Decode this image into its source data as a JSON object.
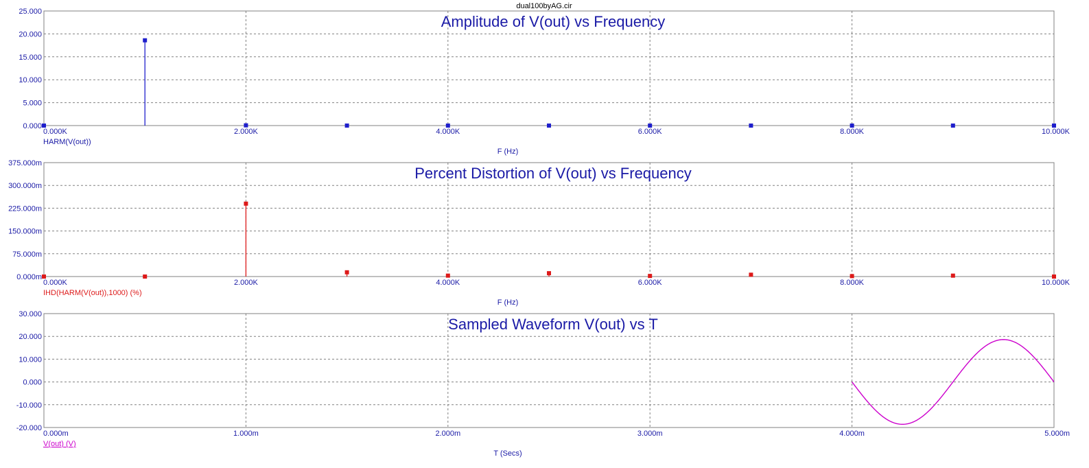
{
  "file_title": "dual100byAG.cir",
  "colors": {
    "axis_text": "#1a1aa6",
    "grid": "#808080",
    "harm": "#1f1fcc",
    "ihd": "#dd1a1a",
    "wave": "#cc00cc"
  },
  "chart_data": [
    {
      "type": "bar",
      "title": "Amplitude of V(out) vs Frequency",
      "xlabel": "F (Hz)",
      "series_label": "HARM(V(out))",
      "xlim": [
        0,
        10000
      ],
      "ylim": [
        0,
        25
      ],
      "x_ticks": [
        0,
        2000,
        4000,
        6000,
        8000,
        10000
      ],
      "x_tick_labels": [
        "0.000K",
        "2.000K",
        "4.000K",
        "6.000K",
        "8.000K",
        "10.000K"
      ],
      "y_ticks": [
        0,
        5,
        10,
        15,
        20,
        25
      ],
      "y_tick_labels": [
        "0.000",
        "5.000",
        "10.000",
        "15.000",
        "20.000",
        "25.000"
      ],
      "grid": true,
      "x": [
        0,
        1000,
        2000,
        3000,
        4000,
        5000,
        6000,
        7000,
        8000,
        9000,
        10000
      ],
      "values": [
        0,
        18.6,
        0.05,
        0.003,
        0.0005,
        0.002,
        0.0003,
        0.001,
        0.0002,
        0.0005,
        0
      ]
    },
    {
      "type": "bar",
      "title": "Percent Distortion of V(out) vs Frequency",
      "xlabel": "F (Hz)",
      "series_label": "IHD(HARM(V(out)),1000) (%)",
      "xlim": [
        0,
        10000
      ],
      "ylim": [
        0,
        375
      ],
      "x_ticks": [
        0,
        2000,
        4000,
        6000,
        8000,
        10000
      ],
      "x_tick_labels": [
        "0.000K",
        "2.000K",
        "4.000K",
        "6.000K",
        "8.000K",
        "10.000K"
      ],
      "y_ticks": [
        0,
        75,
        150,
        225,
        300,
        375
      ],
      "y_tick_labels": [
        "0.000m",
        "75.000m",
        "150.000m",
        "225.000m",
        "300.000m",
        "375.000m"
      ],
      "grid": true,
      "x": [
        0,
        1000,
        2000,
        3000,
        4000,
        5000,
        6000,
        7000,
        8000,
        9000,
        10000
      ],
      "values": [
        0,
        0,
        240,
        14,
        3,
        11,
        2,
        6,
        1.5,
        3,
        0
      ]
    },
    {
      "type": "line",
      "title": "Sampled Waveform  V(out) vs T",
      "xlabel": "T (Secs)",
      "series_label": "V(out) (V)",
      "xlim": [
        0,
        5
      ],
      "ylim": [
        -20,
        30
      ],
      "x_ticks": [
        0,
        1,
        2,
        3,
        4,
        5
      ],
      "x_tick_labels": [
        "0.000m",
        "1.000m",
        "2.000m",
        "3.000m",
        "4.000m",
        "5.000m"
      ],
      "y_ticks": [
        -20,
        -10,
        0,
        10,
        20,
        30
      ],
      "y_tick_labels": [
        "-20.000",
        "-10.000",
        "0.000",
        "10.000",
        "20.000",
        "30.000"
      ],
      "grid": true,
      "sine": {
        "t_start": 4.0,
        "t_end": 5.0,
        "amplitude": 18.6,
        "frequency": 1,
        "phase_sign": -1
      }
    }
  ]
}
